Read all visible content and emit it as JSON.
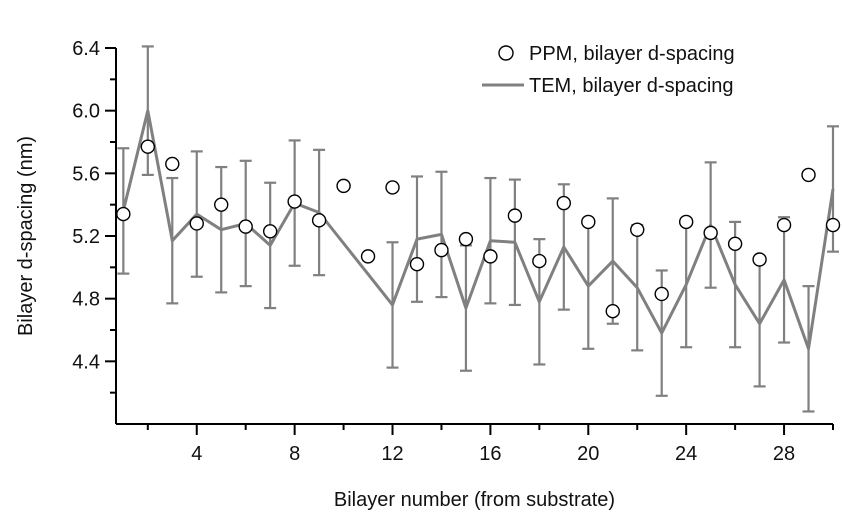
{
  "chart_data": {
    "type": "line",
    "xlabel": "Bilayer number (from substrate)",
    "ylabel": "Bilayer d-spacing (nm)",
    "xlim": [
      0.7,
      30
    ],
    "ylim": [
      4.0,
      6.4
    ],
    "x_major_ticks": [
      4,
      8,
      12,
      16,
      20,
      24,
      28
    ],
    "x_minor_ticks": [
      2,
      6,
      10,
      14,
      18,
      22,
      26,
      30
    ],
    "y_major_ticks": [
      4.4,
      4.8,
      5.2,
      5.6,
      6.0,
      6.4
    ],
    "y_minor_ticks": [
      4.2,
      4.6,
      5.0,
      5.4,
      5.8,
      6.2
    ],
    "x_tick_labels": [
      "4",
      "8",
      "12",
      "16",
      "20",
      "24",
      "28"
    ],
    "y_tick_labels": [
      "4.4",
      "4.8",
      "5.2",
      "5.6",
      "6.0",
      "6.4"
    ],
    "grid": false,
    "legend": "top-right",
    "series": [
      {
        "name": "PPM, bilayer d-spacing",
        "style": "open-circle",
        "color": "#000000",
        "x": [
          1,
          2,
          3,
          4,
          5,
          6,
          7,
          8,
          9,
          10,
          11,
          12,
          13,
          14,
          15,
          16,
          17,
          18,
          19,
          20,
          21,
          22,
          23,
          24,
          25,
          26,
          27,
          28,
          29,
          30
        ],
        "y": [
          5.34,
          5.77,
          5.66,
          5.28,
          5.4,
          5.26,
          5.23,
          5.42,
          5.3,
          5.52,
          5.07,
          5.51,
          5.02,
          5.11,
          5.18,
          5.07,
          5.33,
          5.04,
          5.41,
          5.29,
          4.72,
          5.24,
          4.83,
          5.29,
          5.22,
          5.15,
          5.05,
          5.27,
          5.59,
          5.27
        ]
      },
      {
        "name": "TEM, bilayer d-spacing",
        "style": "line-with-error-bars",
        "color": "#808080",
        "x": [
          1,
          2,
          3,
          4,
          5,
          6,
          7,
          8,
          9,
          12,
          13,
          14,
          15,
          16,
          17,
          18,
          19,
          20,
          21,
          22,
          23,
          24,
          25,
          26,
          27,
          28,
          29,
          30
        ],
        "y": [
          5.36,
          6.0,
          5.17,
          5.34,
          5.24,
          5.28,
          5.14,
          5.41,
          5.35,
          4.76,
          5.18,
          5.21,
          4.74,
          5.17,
          5.16,
          4.78,
          5.13,
          4.88,
          5.04,
          4.87,
          4.58,
          4.89,
          5.27,
          4.89,
          4.64,
          4.92,
          4.48,
          5.5
        ],
        "err": [
          0.4,
          0.41,
          0.4,
          0.4,
          0.4,
          0.4,
          0.4,
          0.4,
          0.4,
          0.4,
          0.4,
          0.4,
          0.4,
          0.4,
          0.4,
          0.4,
          0.4,
          0.4,
          0.4,
          0.4,
          0.4,
          0.4,
          0.4,
          0.4,
          0.4,
          0.4,
          0.4,
          0.4
        ]
      }
    ]
  }
}
